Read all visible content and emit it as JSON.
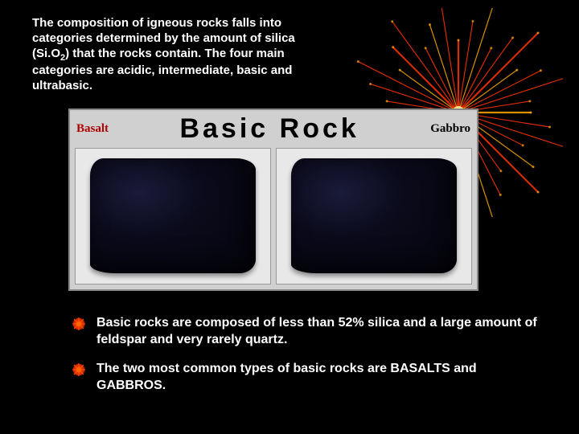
{
  "slide": {
    "background_color": "#000000",
    "text_color": "#ffffff"
  },
  "intro": {
    "text_parts": {
      "before_sub": "The composition of igneous rocks falls into categories determined by the amount of silica (Si.O",
      "subscript": "2",
      "after_sub": ") that the rocks contain. The four main categories are acidic, intermediate, basic and ultrabasic."
    },
    "font_size": 15,
    "font_weight": "bold"
  },
  "rock_panel": {
    "left_label": "Basalt",
    "left_label_color": "#b00000",
    "title": "Basic Rock",
    "title_color": "#000000",
    "title_fontsize": 34,
    "right_label": "Gabbro",
    "right_label_color": "#000000",
    "panel_bg": "#d0d0d0",
    "images": [
      {
        "name": "basalt-sample",
        "rock_color": "#0a0a1a"
      },
      {
        "name": "gabbro-sample",
        "rock_color": "#0a0a1a"
      }
    ]
  },
  "bullets": [
    {
      "text": "Basic rocks are composed of less than 52% silica and a large amount of feldspar and very rarely quartz."
    },
    {
      "text": "The two most common types of basic rocks are BASALTS and GABBROS."
    }
  ],
  "firework": {
    "type": "decorative",
    "color_primary": "#ff3300",
    "color_secondary": "#ffaa00",
    "center_color": "#ffdd88"
  }
}
